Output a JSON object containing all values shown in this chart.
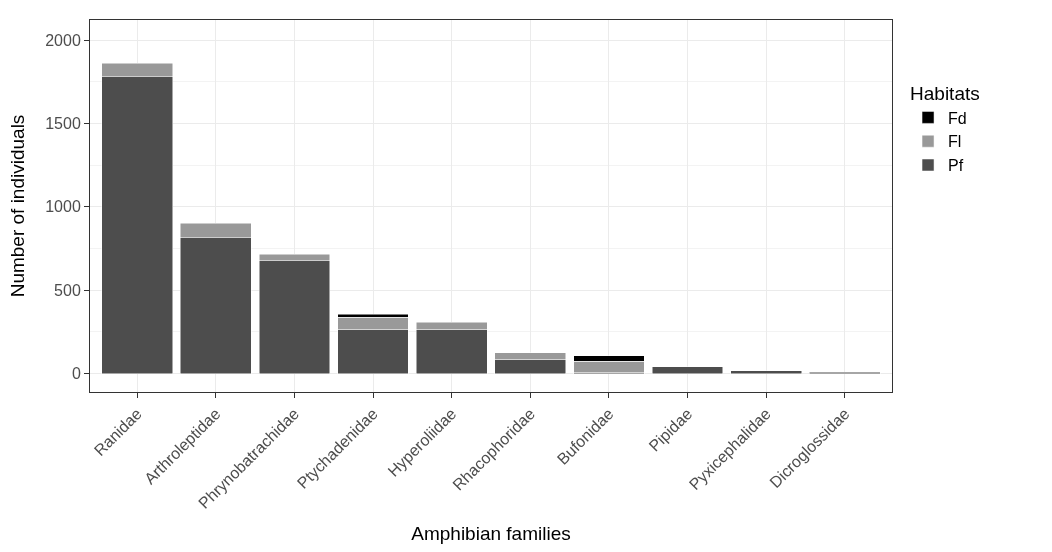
{
  "chart_data": {
    "type": "bar",
    "stacked": true,
    "xlabel": "Amphibian families",
    "ylabel": "Number of individuals",
    "legend_title": "Habitats",
    "legend": "right",
    "grid": true,
    "categories": [
      "Ranidae",
      "Arthroleptidae",
      "Phrynobatrachidae",
      "Ptychadenidae",
      "Hyperoliidae",
      "Rhacophoridae",
      "Bufonidae",
      "Pipidae",
      "Pyxicephalidae",
      "Dicroglossidae"
    ],
    "ylim": [
      -110,
      2120
    ],
    "yticks": [
      0,
      500,
      1000,
      1500,
      2000
    ],
    "series": [
      {
        "name": "Pf",
        "color": "#4d4d4d",
        "values": [
          1780,
          815,
          676,
          266,
          266,
          85,
          7,
          41,
          18,
          9
        ]
      },
      {
        "name": "Fl",
        "color": "#999999",
        "values": [
          80,
          87,
          39,
          73,
          43,
          41,
          66,
          null,
          null,
          null
        ]
      },
      {
        "name": "Fd",
        "color": "#000000",
        "values": [
          null,
          null,
          null,
          16,
          null,
          null,
          35,
          null,
          null,
          null
        ]
      }
    ]
  }
}
